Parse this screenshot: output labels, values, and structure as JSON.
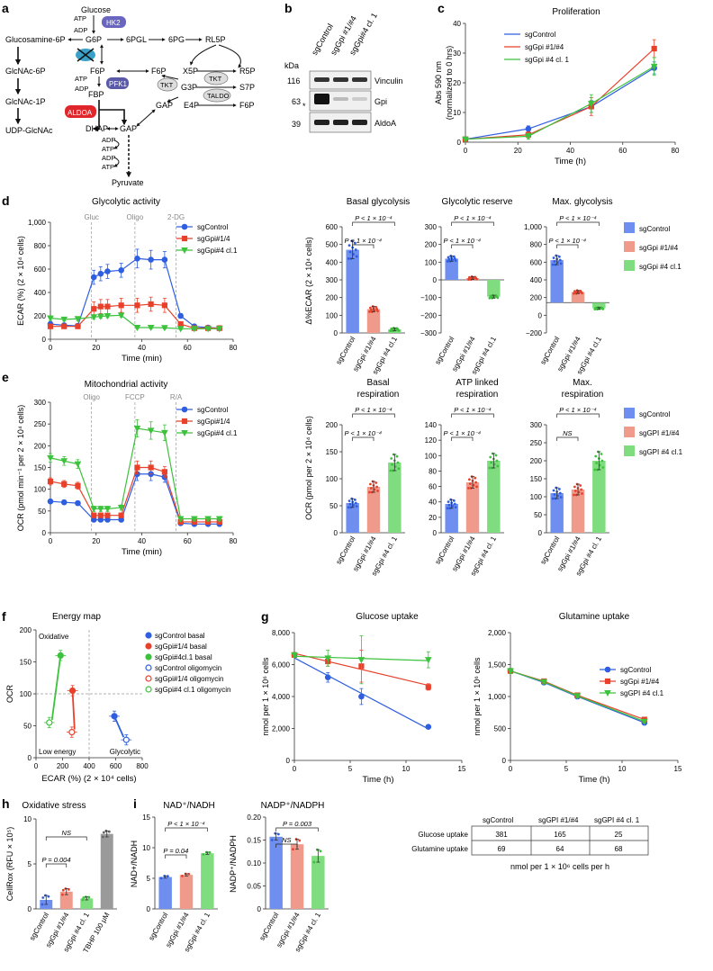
{
  "panel_labels": {
    "a": "a",
    "b": "b",
    "c": "c",
    "d": "d",
    "e": "e",
    "f": "f",
    "g": "g",
    "h": "h",
    "i": "i"
  },
  "colors": {
    "blue": "#2f5fe0",
    "red": "#e8412b",
    "green": "#3cc23c",
    "lightblue": "#6f8ff0",
    "salmon": "#f09a8c",
    "lightgreen": "#7fdc7f",
    "gray": "#9a9a9a",
    "hk2": "#6a66c0",
    "pfk1": "#5a5aa8",
    "aldoa": "#e0262b"
  },
  "pathway": {
    "metabolites": {
      "glucose": "Glucose",
      "g6p": "G6P",
      "pgl6": "6PGL",
      "pg6": "6PG",
      "rl5p": "RL5P",
      "glucosamine6p": "Glucosamine-6P",
      "glcnac6p": "GlcNAc-6P",
      "glcnac1p": "GlcNAc-1P",
      "udpglcnac": "UDP-GlcNAc",
      "f6p": "F6P",
      "fbp": "FBP",
      "dhap": "DHAP",
      "gap": "GAP",
      "pyruvate": "Pyruvate",
      "f6p2": "F6P",
      "gap2": "GAP",
      "x5p": "X5P",
      "g3p": "G3P",
      "e4p": "E4P",
      "r5p": "R5P",
      "s7p": "S7P",
      "f6p3": "F6P"
    },
    "enzymes": {
      "hk2": "HK2",
      "pfk1": "PFK1",
      "aldoa": "ALDOA",
      "tkt": "TKT",
      "tkt2": "TKT",
      "taldo": "TALDO"
    },
    "cofactors": {
      "atp": "ATP",
      "adp": "ADP"
    }
  },
  "blot": {
    "lanes": [
      "sgControl",
      "sgGpi #1/#4",
      "sgGpi#4 cl. 1"
    ],
    "kda_label": "kDa",
    "markers": [
      "116",
      "63",
      "39"
    ],
    "bands": [
      "Vinculin",
      "Gpi",
      "AldoA"
    ],
    "asterisk": "*"
  },
  "proliferation": {
    "chart_data": {
      "type": "line",
      "title": "Proliferation",
      "xlabel": "Time (h)",
      "ylabel": "Abs 590 nm (normalized to 0 hrs)",
      "x": [
        0,
        24,
        48,
        72
      ],
      "xlim": [
        0,
        80
      ],
      "ylim": [
        0,
        40
      ],
      "xticks": [
        "0",
        "20",
        "40",
        "60",
        "80"
      ],
      "yticks": [
        "0",
        "10",
        "20",
        "30",
        "40"
      ],
      "series": [
        {
          "name": "sgControl",
          "values": [
            1,
            4.5,
            12,
            25
          ],
          "err": [
            0.4,
            1,
            2,
            2
          ]
        },
        {
          "name": "sgGpi #1/#4",
          "values": [
            1,
            2.5,
            12,
            31.5
          ],
          "err": [
            0.4,
            1,
            3,
            3
          ]
        },
        {
          "name": "sgGpi #4 cl. 1",
          "values": [
            1,
            2,
            13,
            25.5
          ],
          "err": [
            0.4,
            1,
            3,
            3
          ]
        }
      ]
    }
  },
  "glycolytic": {
    "chart_data": {
      "type": "line",
      "title": "Glycolytic activity",
      "xlabel": "Time (min)",
      "ylabel": "ECAR (%) (2 × 10⁴ cells)",
      "x": [
        0,
        6,
        12,
        19,
        22,
        25,
        31,
        38,
        44,
        50,
        57,
        63,
        69,
        74
      ],
      "xlim": [
        0,
        80
      ],
      "ylim": [
        0,
        1000
      ],
      "xticks": [
        "0",
        "20",
        "40",
        "60",
        "80"
      ],
      "yticks": [
        "0",
        "200",
        "400",
        "600",
        "800",
        "1,000"
      ],
      "injections": [
        "Gluc",
        "Oligo",
        "2-DG"
      ],
      "injection_times": [
        18,
        37,
        55
      ],
      "series": [
        {
          "name": "sgControl",
          "values": [
            130,
            120,
            115,
            530,
            560,
            580,
            590,
            690,
            680,
            680,
            200,
            110,
            100,
            95
          ],
          "err": [
            20,
            15,
            15,
            60,
            60,
            60,
            60,
            80,
            80,
            70,
            20,
            10,
            10,
            10
          ]
        },
        {
          "name": "sgGpi#1/4",
          "values": [
            110,
            110,
            110,
            260,
            280,
            280,
            290,
            290,
            300,
            290,
            130,
            95,
            95,
            95
          ],
          "err": [
            15,
            15,
            15,
            60,
            60,
            60,
            60,
            60,
            60,
            60,
            15,
            10,
            10,
            10
          ]
        },
        {
          "name": "sgGpi#4 cl.1",
          "values": [
            180,
            170,
            175,
            190,
            195,
            200,
            205,
            100,
            100,
            98,
            90,
            90,
            90,
            90
          ],
          "err": [
            20,
            15,
            15,
            15,
            15,
            15,
            15,
            10,
            10,
            10,
            10,
            10,
            10,
            10
          ]
        }
      ]
    }
  },
  "glyco_bars": {
    "ylabel": "Δ%ECAR (2 × 10⁴ cells)",
    "categories": [
      "sgControl",
      "sgGpi #1/#4",
      "sgGpi #4 cl.1"
    ],
    "charts": [
      {
        "title": "Basal glycolysis",
        "ylim": [
          0,
          600
        ],
        "yticks": [
          "0",
          "100",
          "200",
          "300",
          "400",
          "500",
          "600"
        ],
        "values": [
          470,
          135,
          20
        ],
        "err": [
          50,
          15,
          8
        ],
        "pvals": [
          "P < 1 × 10⁻⁴",
          "P < 1 × 10⁻⁴"
        ]
      },
      {
        "title": "Glycolytic reserve",
        "ylim": [
          -300,
          300
        ],
        "yticks": [
          "−300",
          "−200",
          "−100",
          "0",
          "100",
          "200",
          "300"
        ],
        "values": [
          120,
          10,
          -95
        ],
        "err": [
          15,
          8,
          8
        ],
        "pvals": [
          "P < 1 × 10⁻⁴",
          "P < 1 × 10⁻⁴"
        ]
      },
      {
        "title": "Max. glycolysis",
        "ylim": [
          -400,
          1000
        ],
        "yticks": [
          "−200",
          "0",
          "200",
          "400",
          "600",
          "800",
          "1,000"
        ],
        "values": [
          560,
          140,
          -75
        ],
        "err": [
          60,
          20,
          12
        ],
        "pvals": [
          "P < 1 × 10⁻⁴",
          "P < 1 × 10⁻⁴"
        ]
      }
    ],
    "legend": [
      "sgControl",
      "sgGpi #1/#4",
      "sgGpi #4 cl.1"
    ]
  },
  "mito": {
    "chart_data": {
      "type": "line",
      "title": "Mitochondrial activity",
      "xlabel": "Time (min)",
      "ylabel": "OCR (pmol min⁻¹ per 2 × 10⁴ cells)",
      "x": [
        0,
        6,
        12,
        19,
        22,
        25,
        31,
        38,
        44,
        50,
        57,
        63,
        69,
        74
      ],
      "xlim": [
        0,
        80
      ],
      "ylim": [
        0,
        300
      ],
      "xticks": [
        "0",
        "20",
        "40",
        "60",
        "80"
      ],
      "yticks": [
        "0",
        "50",
        "100",
        "150",
        "200",
        "250",
        "300"
      ],
      "injections": [
        "Oligo",
        "FCCP",
        "R/A"
      ],
      "injection_times": [
        18,
        37,
        55
      ],
      "series": [
        {
          "name": "sgControl",
          "values": [
            72,
            70,
            68,
            30,
            30,
            30,
            30,
            135,
            135,
            128,
            22,
            20,
            20,
            20
          ],
          "err": [
            5,
            5,
            5,
            4,
            4,
            4,
            4,
            15,
            15,
            12,
            4,
            4,
            4,
            4
          ]
        },
        {
          "name": "sgGpi#1/4",
          "values": [
            118,
            112,
            108,
            40,
            40,
            40,
            40,
            150,
            150,
            140,
            25,
            25,
            25,
            25
          ],
          "err": [
            8,
            8,
            8,
            5,
            5,
            5,
            5,
            15,
            15,
            12,
            4,
            4,
            4,
            4
          ]
        },
        {
          "name": "sgGpi#4 cl.1",
          "values": [
            172,
            165,
            158,
            55,
            55,
            55,
            58,
            240,
            235,
            230,
            32,
            32,
            32,
            32
          ],
          "err": [
            10,
            10,
            10,
            6,
            6,
            6,
            6,
            20,
            20,
            18,
            5,
            5,
            5,
            5
          ]
        }
      ]
    }
  },
  "mito_bars": {
    "ylabel": "OCR (pmol per 2 × 10⁴ cells)",
    "categories": [
      "sgControl",
      "sgGpi #1/#4",
      "sgGpi #4 cl. 1"
    ],
    "charts": [
      {
        "title": "Basal",
        "title2": "respiration",
        "ylim": [
          0,
          200
        ],
        "yticks": [
          "0",
          "50",
          "100",
          "150",
          "200"
        ],
        "values": [
          55,
          85,
          130
        ],
        "err": [
          8,
          10,
          15
        ],
        "pvals": [
          "P < 1 × 10⁻⁴",
          "P < 1 × 10⁻⁴"
        ]
      },
      {
        "title": "ATP linked",
        "title2": "respiration",
        "ylim": [
          0,
          150
        ],
        "yticks": [
          "0",
          "20",
          "40",
          "60",
          "80",
          "100",
          "120",
          "140"
        ],
        "values": [
          40,
          70,
          100
        ],
        "err": [
          6,
          8,
          10
        ],
        "pvals": [
          "P < 1 × 10⁻⁴",
          "P < 1 × 10⁻⁴"
        ]
      },
      {
        "title": "Max.",
        "title2": "respiration",
        "ylim": [
          0,
          300
        ],
        "yticks": [
          "0",
          "50",
          "100",
          "150",
          "200",
          "250",
          "300"
        ],
        "values": [
          110,
          120,
          200
        ],
        "err": [
          15,
          15,
          25
        ],
        "pvals": [
          "NS",
          "P < 1 × 10⁻⁴"
        ]
      }
    ],
    "legend": [
      "sgControl",
      "sgGPI #1/#4",
      "sgGPI #4 cl.1"
    ]
  },
  "energy": {
    "chart_data": {
      "type": "scatter",
      "title": "Energy map",
      "xlabel": "ECAR (%) (2 × 10⁴ cells)",
      "ylabel": "OCR",
      "xlim": [
        0,
        800
      ],
      "ylim": [
        0,
        200
      ],
      "xticks": [
        "0",
        "200",
        "400",
        "600",
        "800"
      ],
      "yticks": [
        "0",
        "50",
        "100",
        "150",
        "200"
      ],
      "quadrants": [
        "Oxidative",
        "Low energy",
        "Glycolytic"
      ],
      "points": [
        {
          "name": "sgControl basal",
          "x": 590,
          "y": 65,
          "filled": true,
          "color": "blue"
        },
        {
          "name": "sgGpi#1/4 basal",
          "x": 275,
          "y": 105,
          "filled": true,
          "color": "red"
        },
        {
          "name": "sgGpi#4cl.1 basal",
          "x": 185,
          "y": 160,
          "filled": true,
          "color": "green"
        },
        {
          "name": "sgControl oligomycin",
          "x": 680,
          "y": 28,
          "filled": false,
          "color": "blue"
        },
        {
          "name": "sgGpi#1/4 oligomycin",
          "x": 270,
          "y": 40,
          "filled": false,
          "color": "red"
        },
        {
          "name": "sgGpi#4 cl.1 oligomycin",
          "x": 100,
          "y": 55,
          "filled": false,
          "color": "green"
        }
      ]
    }
  },
  "glucose_uptake": {
    "chart_data": {
      "type": "line",
      "title": "Glucose uptake",
      "xlabel": "Time (h)",
      "ylabel": "nmol per 1 × 10⁶ cells",
      "x": [
        0,
        3,
        6,
        12
      ],
      "xlim": [
        0,
        15
      ],
      "ylim": [
        0,
        8000
      ],
      "xticks": [
        "0",
        "5",
        "10",
        "15"
      ],
      "yticks": [
        "0",
        "2,000",
        "4,000",
        "6,000",
        "8,000"
      ],
      "series": [
        {
          "name": "sgControl",
          "values": [
            6600,
            5200,
            4000,
            2100
          ],
          "err": [
            150,
            300,
            500,
            100
          ]
        },
        {
          "name": "sgGpi #1/#4",
          "values": [
            6600,
            6200,
            5900,
            4600
          ],
          "err": [
            150,
            300,
            1000,
            200
          ]
        },
        {
          "name": "sgGpi #4 cl.1",
          "values": [
            6600,
            6400,
            6300,
            6300
          ],
          "err": [
            150,
            500,
            1500,
            500
          ]
        }
      ]
    }
  },
  "glutamine_uptake": {
    "chart_data": {
      "type": "line",
      "title": "Glutamine uptake",
      "xlabel": "Time (h)",
      "ylabel": "nmol per 1 × 10⁶ cells",
      "x": [
        0,
        3,
        6,
        12
      ],
      "xlim": [
        0,
        15
      ],
      "ylim": [
        0,
        2000
      ],
      "xticks": [
        "0",
        "5",
        "10",
        "15"
      ],
      "yticks": [
        "0",
        "500",
        "1,000",
        "1,500",
        "2,000"
      ],
      "series": [
        {
          "name": "sgControl",
          "values": [
            1400,
            1220,
            1000,
            590
          ],
          "err": [
            40,
            30,
            30,
            20
          ]
        },
        {
          "name": "sgGpi #1/#4",
          "values": [
            1400,
            1240,
            1020,
            640
          ],
          "err": [
            40,
            30,
            30,
            20
          ]
        },
        {
          "name": "sgGPI #4 cl.1",
          "values": [
            1400,
            1230,
            1010,
            610
          ],
          "err": [
            40,
            30,
            30,
            20
          ]
        }
      ]
    }
  },
  "oxstress": {
    "chart_data": {
      "type": "bar",
      "title": "Oxidative stress",
      "ylabel": "CellRox (RFU × 10⁵)",
      "categories": [
        "sgControl",
        "sgGpi #1/#4",
        "sgGpi #4 cl. 1",
        "TBHP 100 μM"
      ],
      "values": [
        1.2,
        2.3,
        1.4,
        10
      ],
      "err": [
        0.6,
        0.4,
        0.2,
        0.4
      ],
      "ylim": [
        0,
        12
      ],
      "yticks": [
        "0",
        "5",
        "10"
      ],
      "pvals": [
        "P = 0.004",
        "NS"
      ]
    }
  },
  "nad": {
    "chart_data": {
      "type": "bar",
      "title": "NAD⁺/NADH",
      "ylabel": "NAD+/NADH",
      "categories": [
        "sgControl",
        "sgGpi #1/#4",
        "sgGpi #4 cl. 1"
      ],
      "values": [
        5.9,
        6.3,
        10.3
      ],
      "err": [
        0.2,
        0.2,
        0.2
      ],
      "ylim": [
        0,
        17
      ],
      "yticks": [
        "0",
        "5",
        "10",
        "15"
      ],
      "pvals": [
        "P = 0.04",
        "P < 1 × 10⁻⁴"
      ]
    }
  },
  "nadp": {
    "chart_data": {
      "type": "bar",
      "title": "NADP⁺/NADPH",
      "ylabel": "NADP⁺/NADPH",
      "categories": [
        "sgControl",
        "sgGpi #1/#4",
        "sgGpi #4 cl. 1"
      ],
      "values": [
        0.173,
        0.155,
        0.127
      ],
      "err": [
        0.008,
        0.012,
        0.015
      ],
      "ylim": [
        0,
        0.22
      ],
      "yticks": [
        "0",
        "0.05",
        "0.10",
        "0.15",
        "0.20"
      ],
      "pvals": [
        "NS",
        "P = 0.003"
      ]
    }
  },
  "uptake_table": {
    "headers": [
      "",
      "sgControl",
      "sgGPI #1/#4",
      "sgGPI #4 cl. 1"
    ],
    "rows": [
      [
        "Glucose uptake",
        "381",
        "165",
        "25"
      ],
      [
        "Glutamine uptake",
        "69",
        "64",
        "68"
      ]
    ],
    "caption": "nmol per 1 × 10⁶ cells per h"
  }
}
